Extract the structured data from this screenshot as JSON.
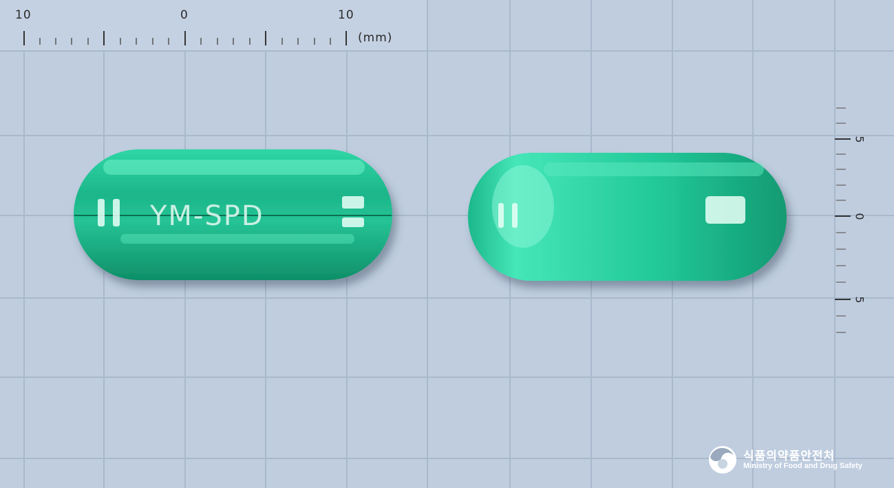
{
  "ruler_top": {
    "labels": [
      "10",
      "0",
      "10"
    ],
    "unit": "(mm)"
  },
  "ruler_side": {
    "labels": [
      "5",
      "0",
      "5"
    ]
  },
  "pill_front": {
    "imprint": "YM-SPD",
    "color": "#1fb58a"
  },
  "pill_back": {
    "color": "#1fb58a"
  },
  "watermark": {
    "icon": "ministry-logo-icon",
    "korean": "식품의약품안전처",
    "english": "Ministry of Food and Drug Safety"
  }
}
